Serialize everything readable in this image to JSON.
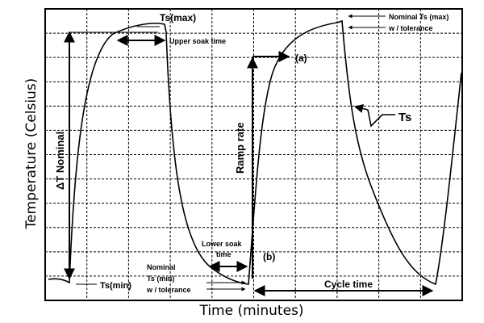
{
  "axes": {
    "x_title": "Time  (minutes)",
    "y_title": "Temperature  (Celsius)"
  },
  "annotations": {
    "ts_max": "Ts(max)",
    "upper_soak_time": "Upper soak time",
    "nominal_ts_max_1": "Nominal Ts (max)",
    "nominal_ts_max_2": "w / tolerance",
    "point_a": "(a)",
    "point_b": "(b)",
    "ts_curve": "Ts",
    "delta_t_nominal": "ΔT Nominal",
    "ramp_rate": "Ramp rate",
    "lower_soak_time_1": "Lower soak",
    "lower_soak_time_2": "time",
    "nominal_ts_min_1": "Nominal",
    "nominal_ts_min_2": "Ts (min)",
    "nominal_ts_min_3": "w / tolerance",
    "ts_min": "Ts(min)",
    "cycle_time": "Cycle time"
  },
  "style": {
    "line_color": "#000000",
    "grid_color": "#000000",
    "background": "#ffffff"
  }
}
